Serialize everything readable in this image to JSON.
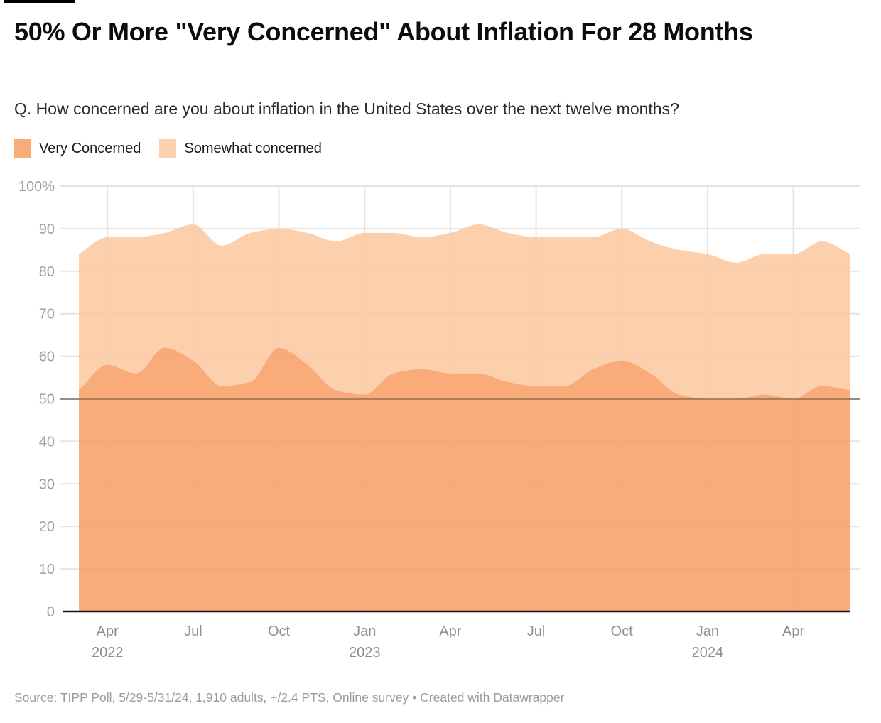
{
  "header": {
    "title": "50% Or More \"Very Concerned\" About Inflation For 28 Months",
    "subtitle": "Q. How concerned are you about inflation in the United States over the next twelve months?"
  },
  "legend": {
    "items": [
      {
        "label": "Very Concerned",
        "color": "#f89e63"
      },
      {
        "label": "Somewhat concerned",
        "color": "#fdc89f"
      }
    ],
    "fill_opacity": 0.85
  },
  "footer": {
    "source": "Source: TIPP Poll, 5/29-5/31/24, 1,910 adults, +/2.4 PTS, Online survey • Created with Datawrapper"
  },
  "style": {
    "grid_color": "#e4e4e4",
    "threshold_color": "#8f8f8f",
    "threshold_overlay_color": "rgba(95,80,65,0.40)",
    "baseline_color": "#151515",
    "y_label_color": "#a0a0a0",
    "x_label_color": "#8f8f8f",
    "title_color": "#0c0c0c",
    "subtitle_color": "#2b2b2b",
    "source_color": "#9b9b9b"
  },
  "chart_data": {
    "type": "area",
    "stacked": true,
    "smoothing": "monotone",
    "title": "50% Or More \"Very Concerned\" About Inflation For 28 Months",
    "xlabel": "",
    "ylabel": "",
    "ylim": [
      0,
      100
    ],
    "grid": true,
    "legend_position": "top-left",
    "threshold_line": {
      "value": 50
    },
    "x": [
      "Mar 2022",
      "Apr 2022",
      "May 2022",
      "Jun 2022",
      "Jul 2022",
      "Aug 2022",
      "Sep 2022",
      "Oct 2022",
      "Nov 2022",
      "Dec 2022",
      "Jan 2023",
      "Feb 2023",
      "Mar 2023",
      "Apr 2023",
      "May 2023",
      "Jun 2023",
      "Jul 2023",
      "Aug 2023",
      "Sep 2023",
      "Oct 2023",
      "Nov 2023",
      "Dec 2023",
      "Jan 2024",
      "Feb 2024",
      "Mar 2024",
      "Apr 2024",
      "May 2024",
      "Jun 2024"
    ],
    "series": [
      {
        "name": "Very Concerned",
        "values": [
          52,
          58,
          56,
          62,
          59,
          53,
          54,
          62,
          58,
          52,
          51,
          56,
          57,
          56,
          56,
          54,
          53,
          53,
          57,
          59,
          56,
          51,
          50,
          50,
          51,
          50,
          53,
          52
        ]
      },
      {
        "name": "Somewhat concerned",
        "values": [
          32,
          30,
          32,
          27,
          32,
          33,
          35,
          28,
          31,
          35,
          38,
          33,
          31,
          33,
          35,
          35,
          35,
          35,
          31,
          31,
          31,
          34,
          34,
          32,
          33,
          34,
          34,
          32
        ]
      }
    ],
    "stack_totals": [
      84,
      88,
      88,
      89,
      91,
      86,
      89,
      90,
      89,
      87,
      89,
      89,
      88,
      89,
      91,
      89,
      88,
      88,
      88,
      90,
      87,
      85,
      84,
      82,
      84,
      84,
      87,
      84
    ],
    "y_ticks": [
      {
        "value": 0,
        "label": "0"
      },
      {
        "value": 10,
        "label": "10"
      },
      {
        "value": 20,
        "label": "20"
      },
      {
        "value": 30,
        "label": "30"
      },
      {
        "value": 40,
        "label": "40"
      },
      {
        "value": 50,
        "label": "50"
      },
      {
        "value": 60,
        "label": "60"
      },
      {
        "value": 70,
        "label": "70"
      },
      {
        "value": 80,
        "label": "80"
      },
      {
        "value": 90,
        "label": "90"
      },
      {
        "value": 100,
        "label": "100%"
      }
    ],
    "x_ticks": [
      {
        "index": 1,
        "month": "Apr",
        "year": "2022"
      },
      {
        "index": 4,
        "month": "Jul",
        "year": ""
      },
      {
        "index": 7,
        "month": "Oct",
        "year": ""
      },
      {
        "index": 10,
        "month": "Jan",
        "year": "2023"
      },
      {
        "index": 13,
        "month": "Apr",
        "year": ""
      },
      {
        "index": 16,
        "month": "Jul",
        "year": ""
      },
      {
        "index": 19,
        "month": "Oct",
        "year": ""
      },
      {
        "index": 22,
        "month": "Jan",
        "year": "2024"
      },
      {
        "index": 25,
        "month": "Apr",
        "year": ""
      }
    ]
  }
}
